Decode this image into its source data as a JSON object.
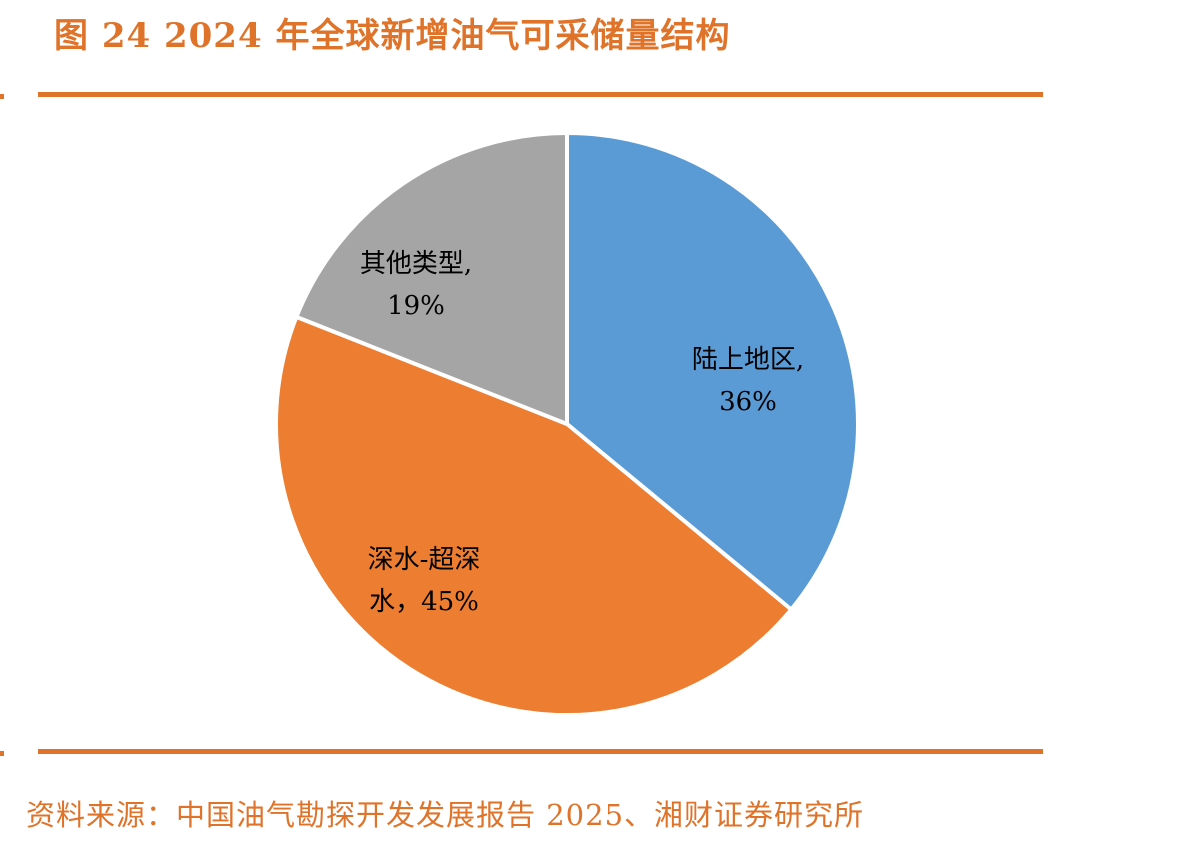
{
  "figure": {
    "title": "图 24 2024 年全球新增油气可采储量结构",
    "source": "资料来源：中国油气勘探开发发展报告 2025、湘财证券研究所"
  },
  "colors": {
    "accent": "#e0732a",
    "slice_blue": "#5b9bd5",
    "slice_orange": "#ed7d31",
    "slice_gray": "#a5a5a5"
  },
  "chart_data": {
    "type": "pie",
    "title": "",
    "start_angle_deg": 0,
    "direction": "clockwise",
    "slices": [
      {
        "label": "陆上地区",
        "value": 36,
        "display": "36%",
        "color": "#5b9bd5",
        "label_lines": [
          "陆上地区,",
          "36%"
        ]
      },
      {
        "label": "深水-超深水",
        "value": 45,
        "display": "45%",
        "color": "#ed7d31",
        "label_lines": [
          "深水-超深",
          "水，45%"
        ]
      },
      {
        "label": "其他类型",
        "value": 19,
        "display": "19%",
        "color": "#a5a5a5",
        "label_lines": [
          "其他类型,",
          "19%"
        ]
      }
    ]
  }
}
